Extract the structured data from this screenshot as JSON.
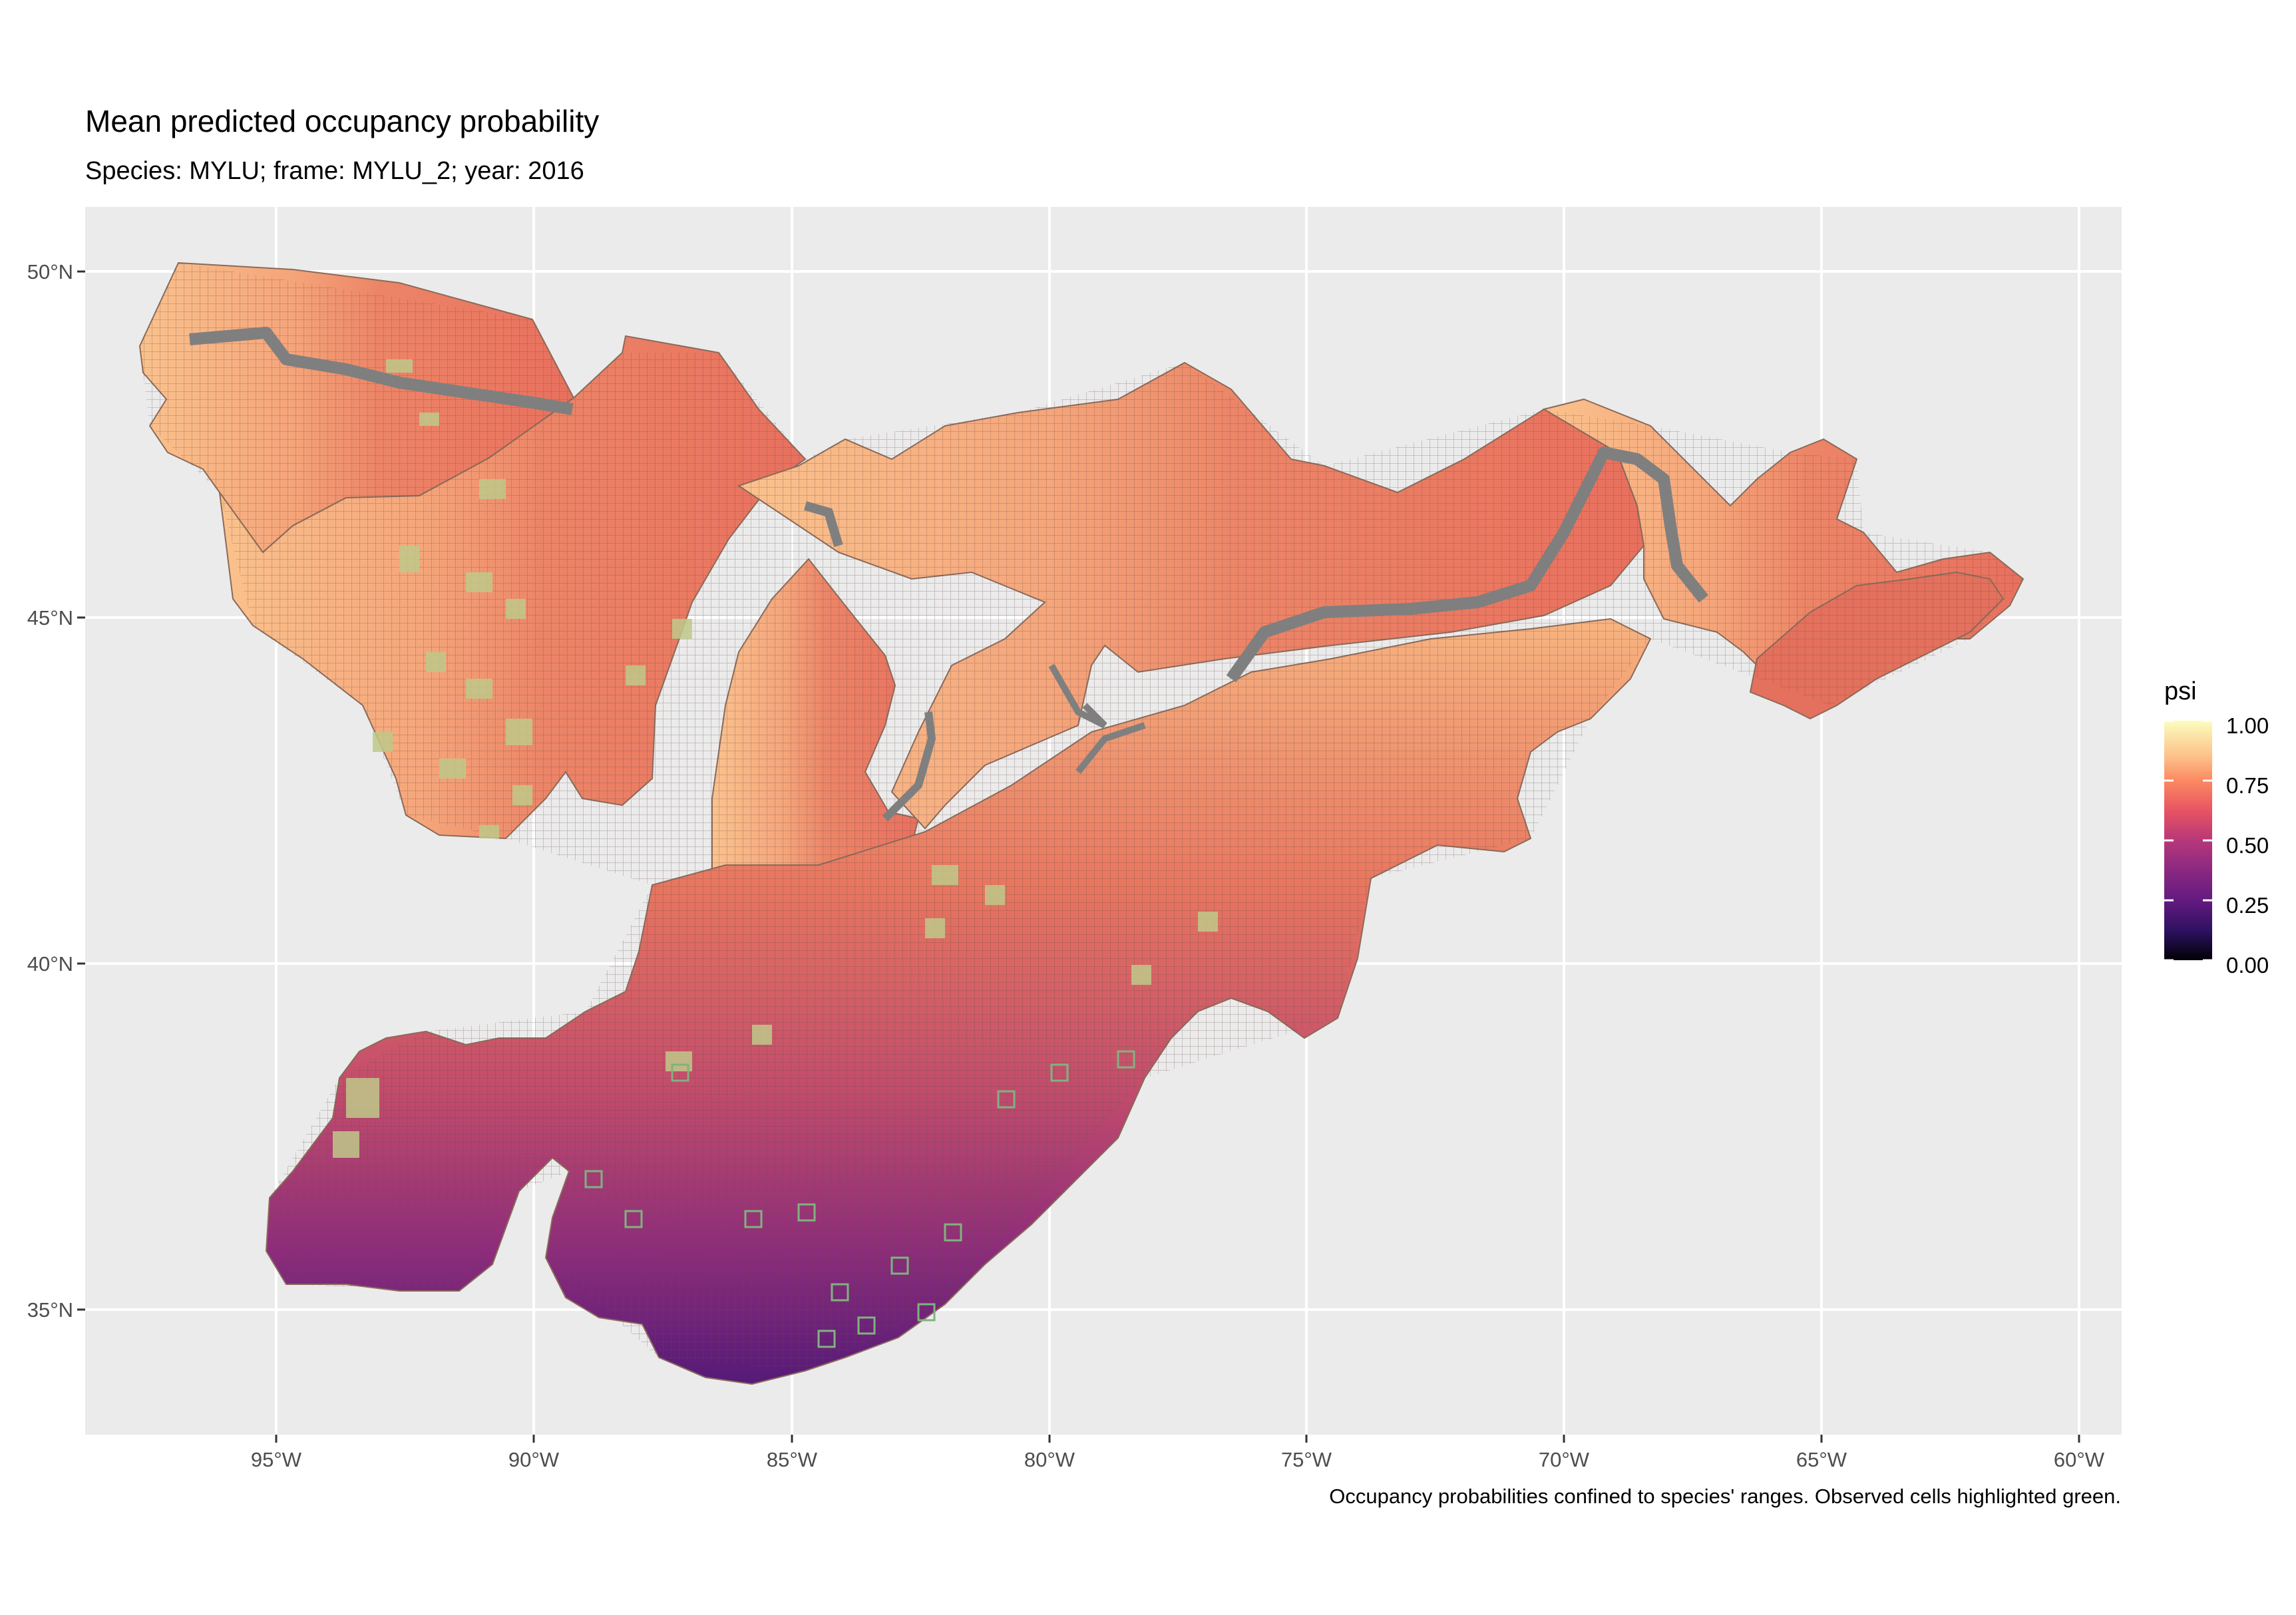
{
  "title": "Mean predicted occupancy probability",
  "subtitle": "Species: MYLU; frame: MYLU_2; year: 2016",
  "caption": "Occupancy probabilities confined to species' ranges. Observed cells highlighted green.",
  "legend": {
    "title": "psi",
    "ticks": [
      "1.00",
      "0.75",
      "0.50",
      "0.25",
      "0.00"
    ],
    "colors": [
      "#fcfdbf",
      "#fdb077",
      "#f7705c",
      "#de4968",
      "#b73779",
      "#8c2981",
      "#641a80",
      "#3b0f70",
      "#0d0829",
      "#000004"
    ]
  },
  "axes": {
    "x_ticks": [
      "95°W",
      "90°W",
      "85°W",
      "80°W",
      "75°W",
      "70°W",
      "65°W",
      "60°W"
    ],
    "y_ticks": [
      "50°N",
      "45°N",
      "40°N",
      "35°N"
    ],
    "panel_background": "#ebebeb",
    "grid_color": "#ffffff",
    "observed_color": "#7fb37f",
    "range_border_color": "#7f7f7f"
  }
}
